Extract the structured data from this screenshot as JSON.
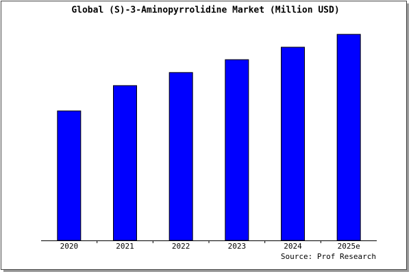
{
  "chart_data": {
    "type": "bar",
    "title": "Global (S)-3-Aminopyrrolidine Market (Million USD)",
    "categories": [
      "2020",
      "2021",
      "2022",
      "2023",
      "2024",
      "2025e"
    ],
    "values": [
      62.4,
      74.6,
      80.9,
      87.1,
      93.1,
      99.3
    ],
    "color": "#0000ff",
    "ylim": [
      0,
      100
    ],
    "source": "Source: Prof Research"
  }
}
